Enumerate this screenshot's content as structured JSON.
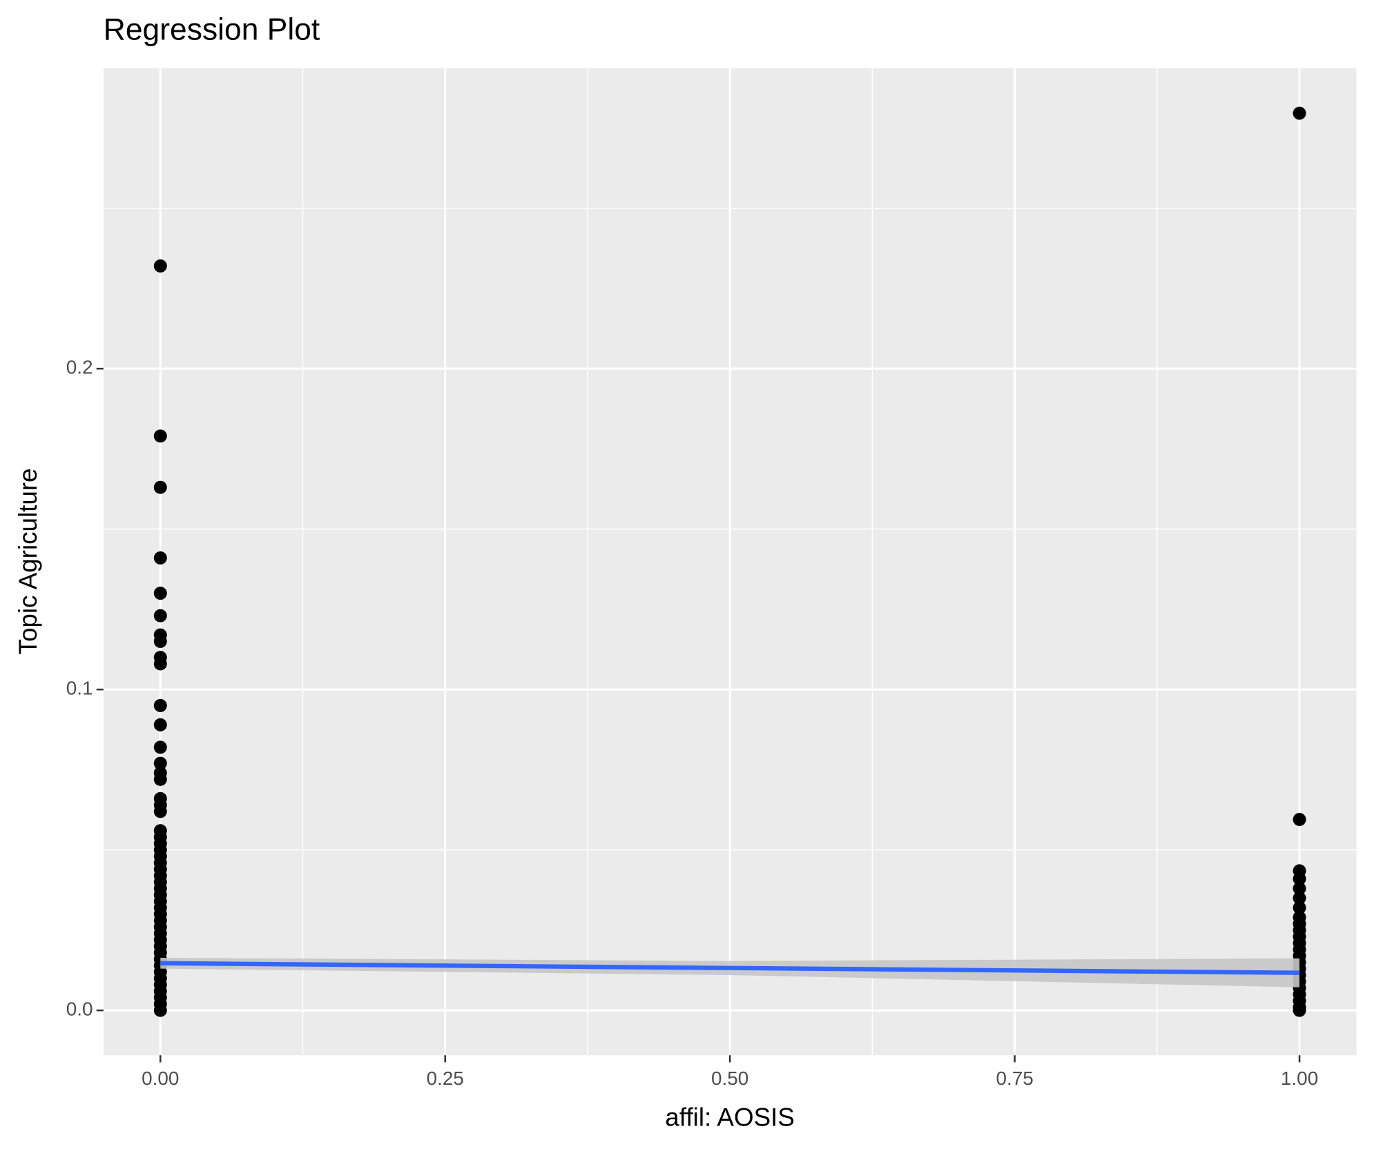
{
  "chart_data": {
    "type": "scatter",
    "title": "Regression Plot",
    "x_label": "affil: AOSIS",
    "y_label": "Topic Agriculture",
    "xlim": [
      -0.05,
      1.05
    ],
    "ylim": [
      -0.014,
      0.2936
    ],
    "xticks": [
      {
        "value": 0,
        "label": "0.00"
      },
      {
        "value": 0.25,
        "label": "0.25"
      },
      {
        "value": 0.5,
        "label": "0.50"
      },
      {
        "value": 0.75,
        "label": "0.75"
      },
      {
        "value": 1,
        "label": "1.00"
      }
    ],
    "yticks": [
      {
        "value": 0,
        "label": "0.0"
      },
      {
        "value": 0.1,
        "label": "0.1"
      },
      {
        "value": 0.2,
        "label": "0.2"
      }
    ],
    "xticks_minor": [
      0.125,
      0.375,
      0.625,
      0.875
    ],
    "yticks_minor": [
      0.05,
      0.15,
      0.25
    ],
    "grid": true,
    "panel_color": "#ebebeb",
    "points": {
      "color": "#000000",
      "x": [
        0,
        0,
        0,
        0,
        0,
        0,
        0,
        0,
        0,
        0,
        0,
        0,
        0,
        0,
        0,
        0,
        0,
        0,
        0,
        0,
        0,
        0,
        0,
        0,
        0,
        0,
        0,
        0,
        0,
        0,
        0,
        0,
        0,
        0,
        0,
        0,
        0,
        0,
        0,
        0,
        0,
        0,
        0,
        0,
        0,
        0,
        0,
        0,
        1,
        1,
        1,
        1,
        1,
        1,
        1,
        1,
        1,
        1,
        1,
        1,
        1,
        1,
        1,
        1,
        1,
        1,
        1,
        1,
        1,
        1,
        1
      ],
      "values": [
        0.232,
        0.179,
        0.163,
        0.141,
        0.13,
        0.123,
        0.117,
        0.115,
        0.11,
        0.108,
        0.095,
        0.089,
        0.082,
        0.077,
        0.074,
        0.072,
        0.066,
        0.064,
        0.062,
        0.056,
        0.054,
        0.052,
        0.05,
        0.048,
        0.046,
        0.044,
        0.042,
        0.04,
        0.038,
        0.036,
        0.034,
        0.032,
        0.03,
        0.028,
        0.026,
        0.024,
        0.022,
        0.02,
        0.018,
        0.016,
        0.014,
        0.012,
        0.01,
        0.008,
        0.006,
        0.004,
        0.002,
        0,
        0.2796,
        0.0595,
        0.0435,
        0.041,
        0.038,
        0.035,
        0.032,
        0.029,
        0.027,
        0.025,
        0.023,
        0.021,
        0.019,
        0.017,
        0.015,
        0.013,
        0.011,
        0.009,
        0.007,
        0.005,
        0.003,
        0.001,
        0
      ]
    },
    "fit": {
      "color": "#3366ff",
      "band_color": "#c6c6c6",
      "x": [
        0,
        0.5,
        1
      ],
      "values": [
        0.0147,
        0.0132,
        0.0117
      ],
      "lower": [
        0.013,
        0.011,
        0.0072
      ],
      "upper": [
        0.0164,
        0.0154,
        0.0162
      ]
    }
  }
}
